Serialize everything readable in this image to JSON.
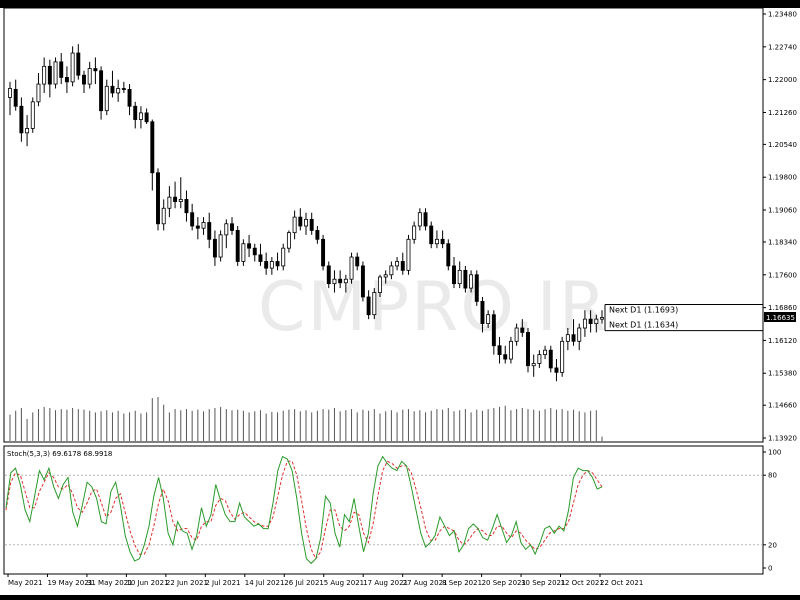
{
  "watermark": "CMPRO.IR",
  "chart_data": [
    {
      "type": "candlestick",
      "name": "EURUSD D1",
      "price_axis_ticks": [
        "1.23480",
        "1.22740",
        "1.22000",
        "1.21260",
        "1.20540",
        "1.19800",
        "1.19060",
        "1.18340",
        "1.17600",
        "1.16860",
        "1.16120",
        "1.15380",
        "1.14660",
        "1.13920"
      ],
      "ylim": [
        1.1392,
        1.2348
      ],
      "current_price_label": "1.16635",
      "current_price": 1.16635,
      "levels": [
        {
          "label": "Next D1 (1.1693)",
          "value": 1.1693
        },
        {
          "label": "Next D1 (1.1634)",
          "value": 1.1634
        }
      ],
      "ohlc": [
        [
          1.216,
          1.2195,
          1.212,
          1.218
        ],
        [
          1.2178,
          1.22,
          1.213,
          1.214
        ],
        [
          1.214,
          1.216,
          1.206,
          1.208
        ],
        [
          1.208,
          1.212,
          1.205,
          1.209
        ],
        [
          1.209,
          1.216,
          1.208,
          1.215
        ],
        [
          1.215,
          1.2215,
          1.214,
          1.219
        ],
        [
          1.219,
          1.225,
          1.217,
          1.223
        ],
        [
          1.223,
          1.2245,
          1.216,
          1.219
        ],
        [
          1.219,
          1.225,
          1.218,
          1.224
        ],
        [
          1.224,
          1.226,
          1.219,
          1.2205
        ],
        [
          1.2205,
          1.223,
          1.217,
          1.2195
        ],
        [
          1.2195,
          1.2275,
          1.2185,
          1.226
        ],
        [
          1.226,
          1.228,
          1.22,
          1.221
        ],
        [
          1.221,
          1.222,
          1.217,
          1.219
        ],
        [
          1.219,
          1.224,
          1.218,
          1.2225
        ],
        [
          1.2225,
          1.225,
          1.219,
          1.222
        ],
        [
          1.222,
          1.223,
          1.211,
          1.213
        ],
        [
          1.213,
          1.22,
          1.212,
          1.2185
        ],
        [
          1.2185,
          1.222,
          1.216,
          1.217
        ],
        [
          1.217,
          1.22,
          1.215,
          1.218
        ],
        [
          1.218,
          1.2195,
          1.217,
          1.2178
        ],
        [
          1.2178,
          1.219,
          1.212,
          1.214
        ],
        [
          1.214,
          1.215,
          1.209,
          1.211
        ],
        [
          1.211,
          1.214,
          1.209,
          1.2125
        ],
        [
          1.2125,
          1.2135,
          1.21,
          1.2105
        ],
        [
          1.2105,
          1.211,
          1.195,
          1.199
        ],
        [
          1.199,
          1.2,
          1.186,
          1.1875
        ],
        [
          1.1875,
          1.193,
          1.186,
          1.191
        ],
        [
          1.191,
          1.196,
          1.189,
          1.1935
        ],
        [
          1.1935,
          1.197,
          1.191,
          1.1925
        ],
        [
          1.1925,
          1.198,
          1.191,
          1.193
        ],
        [
          1.193,
          1.195,
          1.188,
          1.19
        ],
        [
          1.19,
          1.192,
          1.186,
          1.187
        ],
        [
          1.187,
          1.189,
          1.184,
          1.1865
        ],
        [
          1.1865,
          1.189,
          1.185,
          1.1878
        ],
        [
          1.1878,
          1.19,
          1.182,
          1.184
        ],
        [
          1.184,
          1.186,
          1.178,
          1.18
        ],
        [
          1.18,
          1.186,
          1.179,
          1.185
        ],
        [
          1.185,
          1.1885,
          1.182,
          1.1875
        ],
        [
          1.1875,
          1.189,
          1.185,
          1.186
        ],
        [
          1.186,
          1.187,
          1.178,
          1.179
        ],
        [
          1.179,
          1.184,
          1.178,
          1.183
        ],
        [
          1.183,
          1.185,
          1.18,
          1.182
        ],
        [
          1.182,
          1.183,
          1.179,
          1.1805
        ],
        [
          1.1805,
          1.183,
          1.178,
          1.179
        ],
        [
          1.179,
          1.181,
          1.176,
          1.1775
        ],
        [
          1.1775,
          1.18,
          1.176,
          1.179
        ],
        [
          1.179,
          1.181,
          1.177,
          1.178
        ],
        [
          1.178,
          1.183,
          1.177,
          1.182
        ],
        [
          1.182,
          1.186,
          1.181,
          1.1855
        ],
        [
          1.1855,
          1.1905,
          1.184,
          1.189
        ],
        [
          1.189,
          1.191,
          1.186,
          1.187
        ],
        [
          1.187,
          1.19,
          1.185,
          1.1885
        ],
        [
          1.1885,
          1.19,
          1.185,
          1.186
        ],
        [
          1.186,
          1.187,
          1.183,
          1.184
        ],
        [
          1.184,
          1.185,
          1.177,
          1.178
        ],
        [
          1.178,
          1.179,
          1.173,
          1.174
        ],
        [
          1.174,
          1.177,
          1.172,
          1.175
        ],
        [
          1.175,
          1.177,
          1.173,
          1.1742
        ],
        [
          1.1742,
          1.176,
          1.172,
          1.175
        ],
        [
          1.175,
          1.181,
          1.174,
          1.18
        ],
        [
          1.18,
          1.181,
          1.177,
          1.178
        ],
        [
          1.178,
          1.179,
          1.17,
          1.171
        ],
        [
          1.171,
          1.1725,
          1.166,
          1.167
        ],
        [
          1.167,
          1.173,
          1.166,
          1.172
        ],
        [
          1.172,
          1.176,
          1.171,
          1.1755
        ],
        [
          1.1755,
          1.177,
          1.174,
          1.176
        ],
        [
          1.176,
          1.179,
          1.175,
          1.178
        ],
        [
          1.178,
          1.18,
          1.177,
          1.179
        ],
        [
          1.179,
          1.181,
          1.176,
          1.177
        ],
        [
          1.177,
          1.185,
          1.176,
          1.184
        ],
        [
          1.184,
          1.188,
          1.183,
          1.187
        ],
        [
          1.187,
          1.191,
          1.186,
          1.19
        ],
        [
          1.19,
          1.191,
          1.186,
          1.187
        ],
        [
          1.187,
          1.188,
          1.182,
          1.183
        ],
        [
          1.183,
          1.186,
          1.182,
          1.184
        ],
        [
          1.184,
          1.186,
          1.182,
          1.183
        ],
        [
          1.183,
          1.184,
          1.177,
          1.178
        ],
        [
          1.178,
          1.18,
          1.173,
          1.174
        ],
        [
          1.174,
          1.179,
          1.173,
          1.177
        ],
        [
          1.177,
          1.178,
          1.172,
          1.173
        ],
        [
          1.173,
          1.177,
          1.172,
          1.176
        ],
        [
          1.176,
          1.177,
          1.169,
          1.17
        ],
        [
          1.17,
          1.171,
          1.163,
          1.165
        ],
        [
          1.165,
          1.168,
          1.164,
          1.167
        ],
        [
          1.167,
          1.168,
          1.158,
          1.16
        ],
        [
          1.16,
          1.162,
          1.156,
          1.158
        ],
        [
          1.158,
          1.16,
          1.156,
          1.157
        ],
        [
          1.157,
          1.162,
          1.156,
          1.161
        ],
        [
          1.161,
          1.165,
          1.16,
          1.164
        ],
        [
          1.164,
          1.166,
          1.162,
          1.163
        ],
        [
          1.163,
          1.164,
          1.154,
          1.1555
        ],
        [
          1.1555,
          1.158,
          1.153,
          1.156
        ],
        [
          1.156,
          1.159,
          1.155,
          1.158
        ],
        [
          1.158,
          1.16,
          1.157,
          1.159
        ],
        [
          1.159,
          1.16,
          1.154,
          1.155
        ],
        [
          1.155,
          1.157,
          1.152,
          1.154
        ],
        [
          1.154,
          1.162,
          1.153,
          1.161
        ],
        [
          1.161,
          1.164,
          1.159,
          1.1625
        ],
        [
          1.1625,
          1.166,
          1.16,
          1.161
        ],
        [
          1.161,
          1.165,
          1.159,
          1.164
        ],
        [
          1.164,
          1.168,
          1.162,
          1.166
        ],
        [
          1.166,
          1.168,
          1.163,
          1.165
        ],
        [
          1.165,
          1.167,
          1.163,
          1.166
        ],
        [
          1.166,
          1.168,
          1.165,
          1.16635
        ]
      ],
      "volume": [
        48,
        55,
        60,
        40,
        52,
        58,
        62,
        60,
        56,
        58,
        57,
        60,
        58,
        57,
        55,
        52,
        54,
        56,
        52,
        55,
        50,
        52,
        55,
        50,
        52,
        78,
        80,
        66,
        52,
        58,
        56,
        58,
        55,
        57,
        54,
        58,
        60,
        62,
        58,
        56,
        57,
        55,
        52,
        54,
        56,
        50,
        53,
        52,
        55,
        57,
        58,
        54,
        56,
        52,
        55,
        58,
        57,
        60,
        54,
        56,
        58,
        52,
        57,
        55,
        58,
        50,
        54,
        56,
        52,
        57,
        58,
        54,
        56,
        52,
        55,
        58,
        57,
        60,
        54,
        56,
        58,
        52,
        57,
        55,
        58,
        60,
        62,
        64,
        56,
        58,
        60,
        58,
        57,
        55,
        58,
        60,
        57,
        58,
        55,
        57,
        54,
        52,
        55,
        56,
        8
      ],
      "stoch": {
        "label": "Stoch(5,3,3) 69.6178 68.9918",
        "ticks": [
          "100",
          "80",
          "20",
          "0"
        ],
        "levels": [
          20,
          80
        ],
        "ylim": [
          0,
          100
        ],
        "main": [
          52,
          82,
          86,
          72,
          50,
          40,
          62,
          84,
          76,
          86,
          70,
          60,
          72,
          78,
          48,
          36,
          54,
          74,
          70,
          60,
          40,
          38,
          66,
          74,
          54,
          28,
          14,
          6,
          8,
          20,
          36,
          62,
          78,
          60,
          30,
          20,
          40,
          32,
          30,
          16,
          28,
          52,
          36,
          46,
          72,
          58,
          46,
          40,
          40,
          56,
          44,
          40,
          36,
          38,
          34,
          34,
          56,
          84,
          96,
          94,
          84,
          60,
          30,
          8,
          4,
          8,
          26,
          62,
          56,
          30,
          18,
          46,
          40,
          60,
          36,
          14,
          30,
          64,
          88,
          96,
          90,
          86,
          84,
          92,
          88,
          70,
          50,
          30,
          18,
          22,
          28,
          44,
          36,
          28,
          32,
          14,
          20,
          34,
          38,
          34,
          26,
          24,
          34,
          46,
          34,
          22,
          28,
          40,
          22,
          16,
          20,
          12,
          22,
          34,
          36,
          30,
          36,
          32,
          50,
          78,
          86,
          84,
          84,
          78,
          68,
          70
        ],
        "signal": [
          50,
          74,
          82,
          80,
          66,
          52,
          52,
          66,
          74,
          82,
          78,
          70,
          68,
          72,
          64,
          52,
          48,
          56,
          66,
          68,
          56,
          44,
          48,
          60,
          64,
          48,
          32,
          20,
          12,
          12,
          20,
          36,
          56,
          68,
          58,
          40,
          32,
          34,
          34,
          26,
          24,
          36,
          40,
          40,
          54,
          60,
          58,
          48,
          42,
          46,
          48,
          44,
          40,
          38,
          36,
          36,
          44,
          62,
          80,
          92,
          92,
          80,
          58,
          34,
          16,
          8,
          14,
          34,
          50,
          50,
          36,
          32,
          36,
          48,
          46,
          30,
          22,
          38,
          62,
          84,
          92,
          90,
          86,
          88,
          88,
          82,
          68,
          52,
          34,
          24,
          24,
          32,
          36,
          34,
          32,
          24,
          20,
          24,
          30,
          34,
          32,
          28,
          28,
          36,
          36,
          30,
          26,
          32,
          30,
          24,
          20,
          16,
          18,
          24,
          30,
          32,
          34,
          34,
          40,
          56,
          72,
          80,
          84,
          82,
          76,
          70
        ]
      },
      "date_ticks": [
        "May 2021",
        "19 May 2021",
        "31 May 2021",
        "10 Jun 2021",
        "22 Jun 2021",
        "2 Jul 2021",
        "14 Jul 2021",
        "26 Jul 2021",
        "5 Aug 2021",
        "17 Aug 2021",
        "27 Aug 2021",
        "8 Sep 2021",
        "20 Sep 2021",
        "30 Sep 2021",
        "12 Oct 2021",
        "22 Oct 2021"
      ]
    }
  ]
}
